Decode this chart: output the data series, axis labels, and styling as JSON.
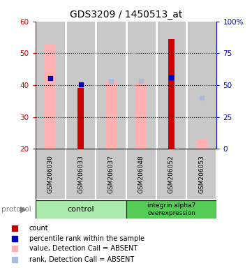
{
  "title": "GDS3209 / 1450513_at",
  "samples": [
    "GSM206030",
    "GSM206033",
    "GSM206037",
    "GSM206048",
    "GSM206052",
    "GSM206053"
  ],
  "ylim_left": [
    20,
    60
  ],
  "ylim_right": [
    0,
    100
  ],
  "yticks_left": [
    20,
    30,
    40,
    50,
    60
  ],
  "ytick_labels_right": [
    "0",
    "25",
    "50",
    "75",
    "100%"
  ],
  "yticks_right": [
    0,
    25,
    50,
    75,
    100
  ],
  "red_bars": [
    null,
    39.0,
    null,
    null,
    54.5,
    null
  ],
  "pink_bars": [
    53.0,
    null,
    41.5,
    41.0,
    null,
    23.0
  ],
  "blue_squares": [
    42.2,
    40.2,
    null,
    null,
    42.5,
    null
  ],
  "lightblue_squares": [
    null,
    null,
    41.2,
    41.2,
    null,
    36.0
  ],
  "bar_bottom": 20,
  "colors": {
    "red": "#cc0000",
    "pink": "#ffb0b0",
    "blue": "#0000bb",
    "lightblue": "#aabbdd",
    "axis_left": "#cc0000",
    "axis_right": "#0000bb",
    "gray_bg": "#c8c8c8",
    "group_control": "#aaeaaa",
    "group_integrin": "#55cc55"
  },
  "legend_items": [
    {
      "label": "count",
      "color": "#cc0000"
    },
    {
      "label": "percentile rank within the sample",
      "color": "#0000bb"
    },
    {
      "label": "value, Detection Call = ABSENT",
      "color": "#ffb0b0"
    },
    {
      "label": "rank, Detection Call = ABSENT",
      "color": "#aabbdd"
    }
  ]
}
